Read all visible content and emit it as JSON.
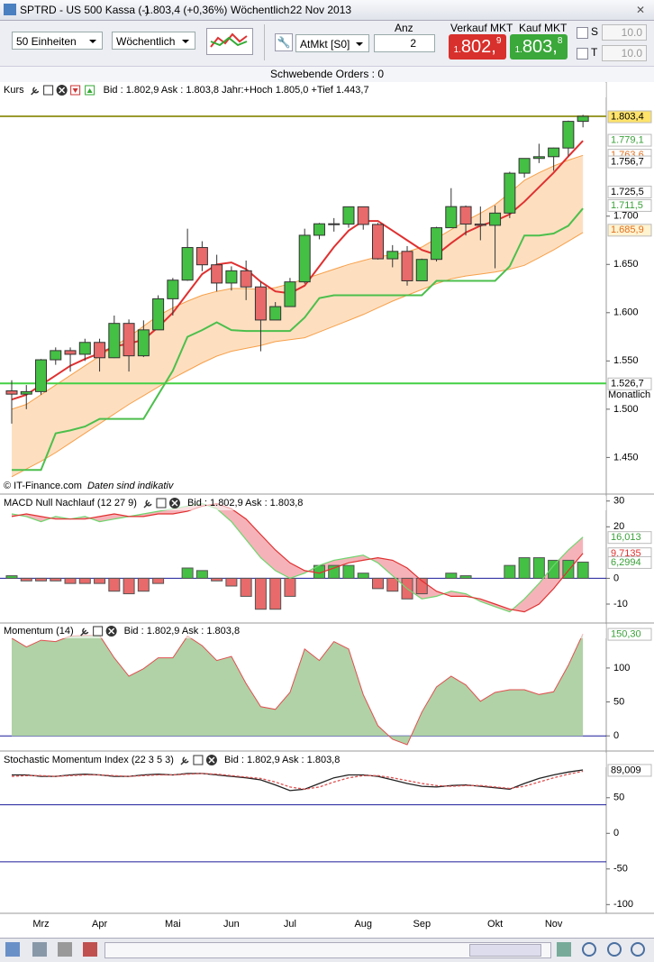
{
  "window": {
    "title": "SPTRD - US 500 Kassa (-)",
    "quote": "1.803,4 (+0,36%)",
    "period": "Wöchentlich",
    "date": "22 Nov 2013"
  },
  "toolbar": {
    "units": "50 Einheiten",
    "period": "Wöchentlich",
    "order_type": "AtMkt [S0]",
    "qty_label": "Anz",
    "qty": "2",
    "sell_label": "Verkauf MKT",
    "sell_price": {
      "lead": "1.",
      "main": "802,",
      "tail": "9"
    },
    "buy_label": "Kauf MKT",
    "buy_price": {
      "lead": "1.",
      "main": "803,",
      "tail": "8"
    },
    "s_label": "S",
    "s_value": "10.0",
    "t_label": "T",
    "t_value": "10.0"
  },
  "pending_orders": "Schwebende Orders : 0",
  "chart_data": [
    {
      "type": "candlestick",
      "title": "Kurs",
      "info": "Bid : 1.802,9 Ask : 1.803,8 Jahr:+Hoch 1.805,0 +Tief 1.443,7",
      "categories": [
        null,
        null,
        "Mrz",
        null,
        null,
        null,
        "Apr",
        null,
        null,
        null,
        null,
        "Mai",
        null,
        null,
        null,
        "Jun",
        null,
        null,
        null,
        "Jul",
        null,
        null,
        null,
        null,
        "Aug",
        null,
        null,
        null,
        "Sep",
        null,
        null,
        null,
        null,
        "Okt",
        null,
        null,
        null,
        "Nov",
        null,
        null
      ],
      "open": [
        1519,
        1515.6,
        1518.2,
        1551.2,
        1560.7,
        1556.9,
        1569.2,
        1553.3,
        1588.9,
        1555.3,
        1582.2,
        1614.4,
        1633.7,
        1667.5,
        1649.6,
        1630.7,
        1643.4,
        1626.7,
        1592.4,
        1606.3,
        1631.9,
        1680.2,
        1692.1,
        1691.7,
        1709.7,
        1691.4,
        1655.8,
        1663.5,
        1633,
        1655.2,
        1688,
        1709.9,
        1691.8,
        1690.5,
        1703.2,
        1744.5,
        1759.8,
        1761.6,
        1770.6,
        1798.2
      ],
      "high": [
        1530,
        1525,
        1552,
        1564,
        1564,
        1573,
        1573,
        1597,
        1593,
        1592,
        1618,
        1636,
        1687,
        1674,
        1660,
        1648,
        1654,
        1632,
        1611,
        1636,
        1687,
        1693,
        1698,
        1710,
        1709,
        1693,
        1670,
        1669,
        1656,
        1689,
        1729,
        1711,
        1710,
        1711,
        1746,
        1760,
        1775,
        1771,
        1799,
        1805
      ],
      "low": [
        1485,
        1500,
        1515,
        1546,
        1539,
        1550,
        1539,
        1553,
        1539,
        1554,
        1582,
        1597,
        1633,
        1643,
        1622,
        1623,
        1613,
        1560,
        1593,
        1606,
        1630,
        1676,
        1684,
        1688,
        1686,
        1655,
        1647,
        1628,
        1633,
        1653,
        1688,
        1680,
        1675,
        1646,
        1698,
        1740,
        1755,
        1747,
        1762,
        1792
      ],
      "close": [
        1515.6,
        1518.2,
        1551.2,
        1560.7,
        1556.9,
        1569.2,
        1553.3,
        1588.9,
        1555.3,
        1582.2,
        1614.4,
        1633.7,
        1667.5,
        1649.6,
        1630.7,
        1643.4,
        1626.7,
        1592.4,
        1606.3,
        1631.9,
        1680.2,
        1692.1,
        1691.7,
        1709.7,
        1691.4,
        1655.8,
        1663.5,
        1633,
        1655.2,
        1688,
        1709.9,
        1691.8,
        1690.5,
        1703.2,
        1744.5,
        1759.8,
        1761.6,
        1770.6,
        1798.2,
        1803.4
      ],
      "up_color": "#44c044",
      "down_color": "#e86a6a",
      "band": {
        "upper": [
          1500,
          1505,
          1515,
          1525,
          1535,
          1545,
          1555,
          1565,
          1575,
          1586,
          1597,
          1605,
          1612,
          1618,
          1622,
          1625,
          1625,
          1624,
          1626,
          1630,
          1635,
          1640,
          1645,
          1650,
          1654,
          1658,
          1660,
          1663,
          1668,
          1677,
          1686,
          1695,
          1703,
          1712,
          1724,
          1737,
          1745,
          1752,
          1758,
          1763
        ],
        "lower": [
          1430,
          1438,
          1446,
          1455,
          1465,
          1475,
          1485,
          1495,
          1505,
          1514,
          1523,
          1532,
          1540,
          1548,
          1555,
          1560,
          1563,
          1566,
          1570,
          1572,
          1574,
          1580,
          1586,
          1592,
          1598,
          1605,
          1612,
          1618,
          1624,
          1630,
          1635,
          1638,
          1640,
          1642,
          1645,
          1649,
          1657,
          1665,
          1674,
          1683
        ],
        "color": "#f7a04a",
        "fill": "#fdd9b5"
      },
      "overlays": [
        {
          "color": "#e03030",
          "values": [
            1510,
            1515,
            1525,
            1535,
            1545,
            1552,
            1558,
            1565,
            1568,
            1572,
            1585,
            1600,
            1620,
            1640,
            1650,
            1652,
            1645,
            1632,
            1622,
            1620,
            1628,
            1648,
            1668,
            1685,
            1695,
            1695,
            1685,
            1675,
            1665,
            1660,
            1672,
            1683,
            1690,
            1695,
            1702,
            1715,
            1730,
            1745,
            1762,
            1778
          ]
        },
        {
          "color": "#4cbf4c",
          "values": [
            1437,
            1437,
            1437,
            1475,
            1478,
            1482,
            1490,
            1490,
            1490,
            1490,
            1515,
            1540,
            1575,
            1582,
            1590,
            1582,
            1581,
            1581,
            1581,
            1581,
            1595,
            1615,
            1618,
            1618,
            1618,
            1618,
            1618,
            1618,
            1618,
            1633,
            1633,
            1633,
            1633,
            1633,
            1648,
            1680,
            1680,
            1682,
            1690,
            1708
          ]
        }
      ],
      "ylim": [
        1413,
        1838
      ],
      "yticks": [
        {
          "value": 1450,
          "label": "1.450"
        },
        {
          "value": 1500,
          "label": "1.500"
        },
        {
          "value": 1550,
          "label": "1.550"
        },
        {
          "value": 1600,
          "label": "1.600"
        },
        {
          "value": 1650,
          "label": "1.650"
        },
        {
          "value": 1700,
          "label": "1.700"
        }
      ],
      "tags": [
        {
          "value": 1803.4,
          "label": "1.803,4",
          "color": "#000000",
          "bg": "#ffe36b",
          "line_color": "#9a9a30"
        },
        {
          "value": 1779.1,
          "label": "1.779,1",
          "color": "#3aa03a",
          "bg": "#ffffff"
        },
        {
          "value": 1763.6,
          "label": "1.763,6",
          "color": "#e07020",
          "bg": "#ffffff"
        },
        {
          "value": 1756.7,
          "label": "1.756,7",
          "color": "#000000",
          "bg": "#ffffff"
        },
        {
          "value": 1725.5,
          "label": "1.725,5",
          "color": "#000000",
          "bg": "#ffffff"
        },
        {
          "value": 1711.5,
          "label": "1.711,5",
          "color": "#3aa03a",
          "bg": "#ffffff"
        },
        {
          "value": 1685.9,
          "label": "1.685,9",
          "color": "#e07020",
          "bg": "#fff3d0"
        },
        {
          "value": 1526.7,
          "label": "1.526,7",
          "color": "#000000",
          "bg": "#ffffff",
          "note": "Monatlich",
          "line_color": "#44d044"
        }
      ],
      "credit": "© IT-Finance.com",
      "disclaimer": "Daten sind indikativ"
    },
    {
      "type": "macd",
      "title": "MACD Null Nachlauf (12 27 9)",
      "info": "Bid : 1.802,9 Ask : 1.803,8",
      "histogram": [
        1,
        -1,
        -1,
        -1,
        -2,
        -2,
        -2,
        -5,
        -6,
        -5,
        -2,
        0,
        4,
        3,
        -1,
        -3,
        -7,
        -12,
        -12,
        -7,
        0,
        5,
        5,
        5,
        2,
        -4,
        -5,
        -8,
        -6,
        0,
        2,
        1,
        0,
        0,
        5,
        8,
        8,
        7,
        7,
        6.2994
      ],
      "up_color": "#44c044",
      "down_color": "#e86a6a",
      "series": [
        {
          "color": "#6fd66f",
          "values": [
            25,
            24,
            22,
            24,
            23,
            24,
            22,
            23,
            24,
            25,
            26,
            27,
            28,
            29,
            27,
            22,
            15,
            8,
            3,
            0,
            2,
            5,
            7,
            8,
            9,
            6,
            1,
            -4,
            -8,
            -7,
            -5,
            -6,
            -9,
            -11,
            -13,
            -8,
            -2,
            5,
            11,
            16.013
          ]
        },
        {
          "color": "#e03030",
          "values": [
            24,
            25,
            24,
            23,
            23,
            23,
            24,
            25,
            24,
            24,
            25,
            25,
            26,
            28,
            29,
            27,
            23,
            17,
            11,
            6,
            3,
            2,
            4,
            6,
            7,
            8,
            7,
            4,
            -1,
            -5,
            -7,
            -7,
            -8,
            -10,
            -12,
            -13,
            -10,
            -4,
            3,
            9.7135
          ]
        }
      ],
      "ylim": [
        -17,
        32
      ],
      "yticks": [
        -10,
        0,
        20,
        30
      ],
      "hlines": [
        0
      ],
      "tags": [
        {
          "value": 16.013,
          "label": "16,013",
          "color": "#3aa03a",
          "bg": "#ffffff"
        },
        {
          "value": 9.7135,
          "label": "9,7135",
          "color": "#e03030",
          "bg": "#ffffff"
        },
        {
          "value": 6.2994,
          "label": "6,2994",
          "color": "#3aa03a",
          "bg": "#ffffff"
        }
      ]
    },
    {
      "type": "area",
      "title": "Momentum (14)",
      "info": "Bid : 1.802,9 Ask : 1.803,8",
      "values": [
        144,
        131,
        141,
        139,
        147,
        148,
        148,
        115,
        88,
        99,
        115,
        115,
        147,
        133,
        111,
        117,
        77,
        43,
        39,
        64,
        128,
        111,
        139,
        128,
        61,
        15,
        -5,
        -13,
        35,
        72,
        88,
        75,
        51,
        64,
        68,
        68,
        61,
        65,
        104,
        150.3
      ],
      "color": "#b0d2a6",
      "line_color": "#e05050",
      "ylim": [
        -21,
        165
      ],
      "yticks": [
        0,
        50,
        100
      ],
      "hlines": [
        0
      ],
      "tags": [
        {
          "value": 150.3,
          "label": "150,30",
          "color": "#3aa03a",
          "bg": "#ffffff"
        }
      ]
    },
    {
      "type": "line",
      "title": "Stochastic Momentum Index (22 3 5 3)",
      "info": "Bid : 1.802,9 Ask : 1.803,8",
      "series": [
        {
          "color": "#222222",
          "values": [
            82,
            82,
            80,
            80,
            82,
            83,
            82,
            80,
            80,
            82,
            83,
            82,
            84,
            84,
            82,
            80,
            78,
            75,
            68,
            60,
            62,
            70,
            78,
            82,
            82,
            80,
            75,
            70,
            66,
            65,
            67,
            68,
            66,
            64,
            62,
            70,
            77,
            82,
            86,
            89.009
          ]
        },
        {
          "color": "#e05050",
          "dashed": true,
          "values": [
            80,
            81,
            81,
            80,
            81,
            82,
            82,
            81,
            80,
            81,
            82,
            82,
            83,
            84,
            83,
            81,
            79,
            77,
            72,
            65,
            62,
            65,
            72,
            78,
            81,
            81,
            78,
            74,
            70,
            67,
            66,
            67,
            67,
            65,
            63,
            66,
            72,
            78,
            83,
            87
          ]
        }
      ],
      "ylim": [
        -111,
        113
      ],
      "yticks": [
        -100,
        -50,
        0,
        50
      ],
      "hlines": [
        40,
        -40
      ],
      "tags": [
        {
          "value": 89.009,
          "label": "89,009",
          "color": "#000000",
          "bg": "#ffffff"
        }
      ]
    }
  ]
}
